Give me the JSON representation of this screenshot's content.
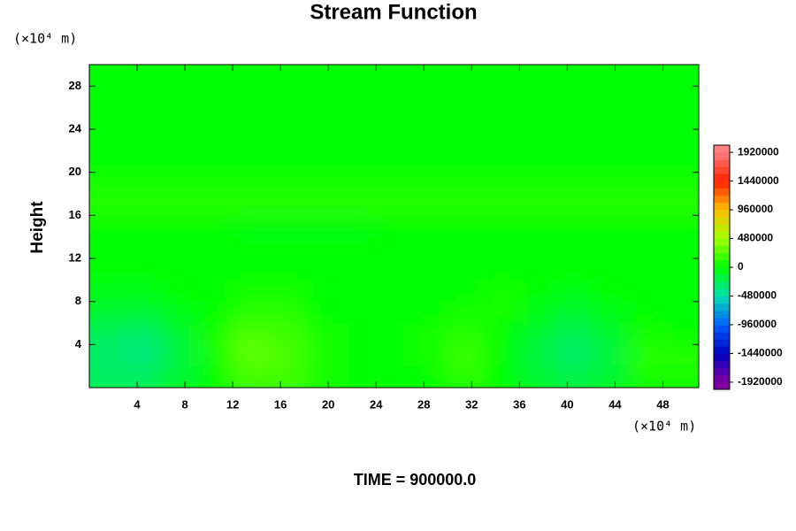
{
  "chart_data": {
    "type": "contour",
    "title": "Stream Function",
    "ylabel": "Height",
    "y_unit": "(×10⁴ m)",
    "x_unit": "(×10⁴ m)",
    "footer": "TIME = 900000.0",
    "xlim": [
      0,
      51
    ],
    "ylim": [
      0,
      30
    ],
    "xticks": [
      4,
      8,
      12,
      16,
      20,
      24,
      28,
      32,
      36,
      40,
      44,
      48
    ],
    "yticks": [
      4,
      8,
      12,
      16,
      20,
      24,
      28
    ],
    "x": [
      1.5,
      4.5,
      7.5,
      10.5,
      13.5,
      16.5,
      19.5,
      22.5,
      25.5,
      28.5,
      31.5,
      34.5,
      37.5,
      40.5,
      43.5,
      46.5,
      49.5
    ],
    "y": [
      1,
      3,
      5,
      7,
      9,
      11,
      13,
      15,
      17,
      19,
      21,
      23,
      25,
      27,
      29
    ],
    "z": [
      [
        -240000,
        -240000,
        -120000,
        0,
        180000,
        180000,
        60000,
        0,
        0,
        0,
        120000,
        0,
        -120000,
        -180000,
        -120000,
        60000,
        60000
      ],
      [
        -300000,
        -360000,
        -180000,
        60000,
        300000,
        240000,
        60000,
        0,
        0,
        60000,
        180000,
        0,
        -180000,
        -300000,
        -180000,
        120000,
        120000
      ],
      [
        -240000,
        -300000,
        -120000,
        60000,
        240000,
        180000,
        60000,
        0,
        0,
        60000,
        120000,
        0,
        -120000,
        -240000,
        -120000,
        60000,
        0
      ],
      [
        -120000,
        -120000,
        -60000,
        0,
        120000,
        120000,
        0,
        0,
        0,
        0,
        60000,
        60000,
        -60000,
        -120000,
        -60000,
        0,
        0
      ],
      [
        -60000,
        -60000,
        0,
        0,
        60000,
        60000,
        0,
        0,
        0,
        0,
        0,
        60000,
        0,
        -60000,
        0,
        0,
        0
      ],
      [
        0,
        0,
        0,
        0,
        0,
        0,
        0,
        0,
        0,
        0,
        0,
        0,
        0,
        0,
        0,
        0,
        0
      ],
      [
        0,
        0,
        0,
        0,
        0,
        0,
        0,
        0,
        0,
        0,
        0,
        0,
        0,
        0,
        0,
        0,
        0
      ],
      [
        0,
        0,
        0,
        0,
        -60000,
        -60000,
        -60000,
        -60000,
        0,
        0,
        0,
        0,
        0,
        0,
        0,
        0,
        0
      ],
      [
        120000,
        120000,
        120000,
        120000,
        120000,
        120000,
        120000,
        120000,
        120000,
        120000,
        120000,
        120000,
        120000,
        120000,
        120000,
        120000,
        120000
      ],
      [
        60000,
        60000,
        60000,
        60000,
        60000,
        60000,
        60000,
        60000,
        60000,
        60000,
        60000,
        60000,
        60000,
        60000,
        60000,
        60000,
        60000
      ],
      [
        0,
        0,
        0,
        0,
        0,
        0,
        0,
        0,
        0,
        0,
        0,
        0,
        0,
        0,
        0,
        0,
        0
      ],
      [
        0,
        0,
        0,
        0,
        0,
        0,
        0,
        0,
        0,
        0,
        0,
        0,
        0,
        0,
        0,
        0,
        0
      ],
      [
        0,
        0,
        0,
        0,
        0,
        0,
        0,
        0,
        0,
        0,
        0,
        0,
        0,
        0,
        0,
        0,
        0
      ],
      [
        0,
        0,
        0,
        0,
        0,
        0,
        0,
        0,
        0,
        0,
        0,
        0,
        0,
        0,
        0,
        0,
        0
      ],
      [
        0,
        0,
        0,
        0,
        0,
        0,
        0,
        0,
        0,
        0,
        0,
        0,
        0,
        0,
        0,
        0,
        0
      ]
    ],
    "clim": [
      -2040000,
      2040000
    ],
    "cticks": [
      -1920000,
      -1440000,
      -960000,
      -480000,
      0,
      480000,
      960000,
      1440000,
      1920000
    ],
    "colormap": [
      "#8000a0",
      "#0000c0",
      "#0060ff",
      "#00e0b0",
      "#00ff00",
      "#a0ff00",
      "#ffc000",
      "#ff2000",
      "#ff8080"
    ]
  }
}
